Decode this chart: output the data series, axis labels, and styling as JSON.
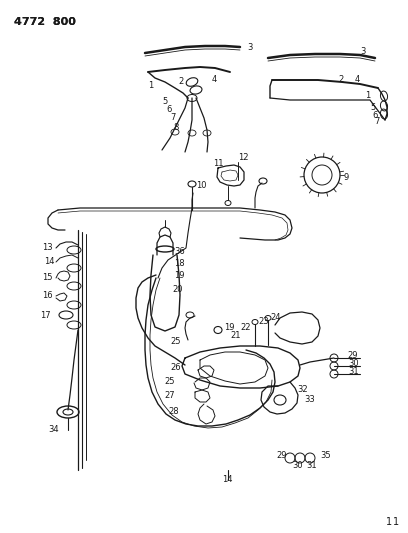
{
  "bg_color": "#ffffff",
  "line_color": "#1a1a1a",
  "text_color": "#1a1a1a",
  "title_text": "4772  800",
  "page_number": "1",
  "figsize": [
    4.08,
    5.33
  ],
  "dpi": 100
}
